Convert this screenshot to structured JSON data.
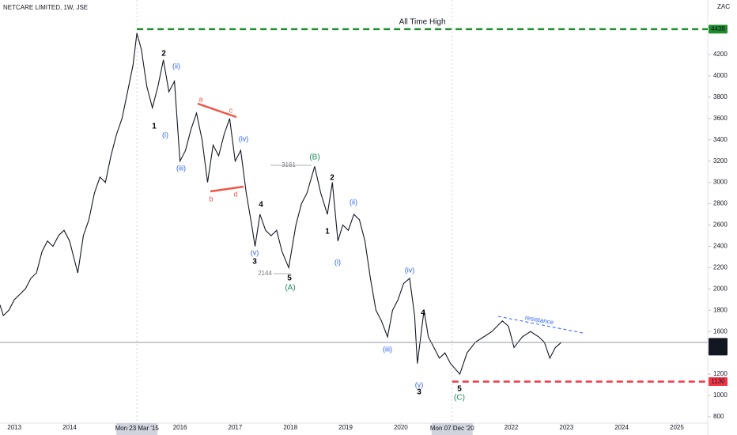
{
  "chart_data": {
    "type": "line",
    "title": "NETCARE LIMITED, 1W, JSE",
    "currency": "ZAC",
    "color": "#131722",
    "x": [
      2012.74,
      2012.8,
      2012.9,
      2013.0,
      2013.1,
      2013.2,
      2013.3,
      2013.4,
      2013.5,
      2013.6,
      2013.7,
      2013.8,
      2013.9,
      2014.0,
      2014.1,
      2014.15,
      2014.25,
      2014.35,
      2014.45,
      2014.55,
      2014.65,
      2014.75,
      2014.85,
      2014.95,
      2015.05,
      2015.15,
      2015.22,
      2015.3,
      2015.4,
      2015.5,
      2015.6,
      2015.7,
      2015.8,
      2015.9,
      2016.0,
      2016.1,
      2016.2,
      2016.3,
      2016.4,
      2016.5,
      2016.6,
      2016.7,
      2016.8,
      2016.9,
      2017.0,
      2017.1,
      2017.2,
      2017.3,
      2017.36,
      2017.45,
      2017.55,
      2017.65,
      2017.75,
      2017.85,
      2017.97,
      2018.1,
      2018.2,
      2018.3,
      2018.44,
      2018.55,
      2018.67,
      2018.76,
      2018.86,
      2018.95,
      2019.05,
      2019.15,
      2019.25,
      2019.35,
      2019.45,
      2019.55,
      2019.65,
      2019.76,
      2019.85,
      2019.95,
      2020.05,
      2020.16,
      2020.25,
      2020.3,
      2020.42,
      2020.5,
      2020.6,
      2020.7,
      2020.8,
      2020.9,
      2021.07,
      2021.2,
      2021.35,
      2021.5,
      2021.65,
      2021.84,
      2021.95,
      2022.05,
      2022.2,
      2022.35,
      2022.5,
      2022.6,
      2022.7,
      2022.8,
      2022.91
    ],
    "values": [
      1850,
      1750,
      1800,
      1900,
      1950,
      2000,
      2100,
      2150,
      2350,
      2450,
      2400,
      2500,
      2550,
      2450,
      2250,
      2150,
      2500,
      2650,
      2900,
      3050,
      3000,
      3250,
      3450,
      3600,
      3850,
      4100,
      4400,
      4250,
      3900,
      3700,
      3900,
      4150,
      3850,
      3950,
      3200,
      3300,
      3500,
      3650,
      3400,
      3000,
      3350,
      3250,
      3450,
      3600,
      3200,
      3300,
      2900,
      2600,
      2400,
      2700,
      2550,
      2500,
      2550,
      2350,
      2200,
      2600,
      2800,
      2900,
      3150,
      2900,
      2700,
      3000,
      2450,
      2600,
      2550,
      2700,
      2650,
      2450,
      2100,
      1800,
      1700,
      1550,
      1800,
      1900,
      2050,
      2100,
      1750,
      1300,
      1800,
      1550,
      1450,
      1350,
      1400,
      1300,
      1200,
      1400,
      1500,
      1550,
      1600,
      1700,
      1650,
      1450,
      1550,
      1600,
      1550,
      1500,
      1350,
      1450,
      1499
    ],
    "xlim": [
      2012.74,
      2025.56
    ],
    "xticks": [
      2013,
      2014,
      2016,
      2017,
      2018,
      2019,
      2020,
      2022,
      2023,
      2024,
      2025
    ],
    "date_labels": [
      {
        "value": 2015.22,
        "label": "Mon 23 Mar '15"
      },
      {
        "value": 2020.93,
        "label": "Mon 07 Dec '20"
      }
    ],
    "ylim": [
      740.6,
      4712
    ],
    "yticks": [
      800,
      1000,
      1200,
      1400,
      1600,
      1800,
      2000,
      2200,
      2400,
      2600,
      2800,
      3000,
      3200,
      3400,
      3600,
      3800,
      4000,
      4200
    ],
    "levels": [
      {
        "name": "All Time High",
        "value": 4438,
        "color": "#1e8c2c",
        "from": 2015.22
      },
      {
        "value": 1130,
        "color": "#f23645",
        "from": 2020.93
      },
      {
        "value": 1499,
        "color": "#9598a1",
        "from": 2012.74,
        "countdown": "41:06"
      }
    ],
    "price_marks": [
      3161,
      2144
    ],
    "annotations": [
      "2",
      "1",
      "(ii)",
      "(i)",
      "(iii)",
      "a",
      "c",
      "(iv)",
      "b",
      "d",
      "4",
      "(v)",
      "3",
      "(B)",
      "2",
      "1",
      "(ii)",
      "(i)",
      "5",
      "(A)",
      "(iv)",
      "(iii)",
      "4",
      "(v)",
      "3",
      "5",
      "(C)",
      "resistance"
    ]
  }
}
